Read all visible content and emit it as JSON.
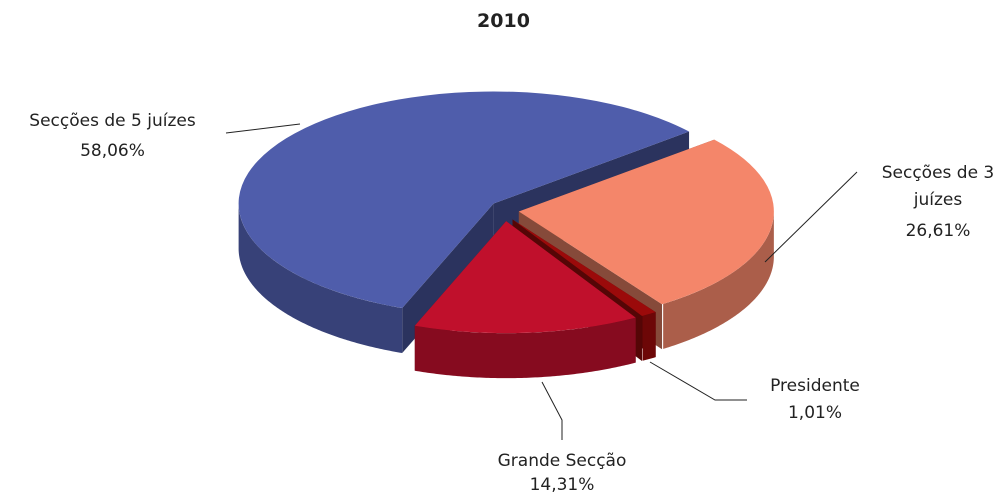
{
  "chart_data": {
    "type": "pie",
    "title": "2010",
    "categories": [
      "Secções de 5 juízes",
      "Secções de 3 juízes",
      "Presidente",
      "Grande Secção"
    ],
    "values": [
      58.06,
      26.61,
      1.01,
      14.31
    ],
    "value_labels": [
      "58,06%",
      "26,61%",
      "1,01%",
      "14,31%"
    ],
    "colors": [
      "#4f5dab",
      "#f4866a",
      "#9b0a0a",
      "#c0102c"
    ]
  }
}
